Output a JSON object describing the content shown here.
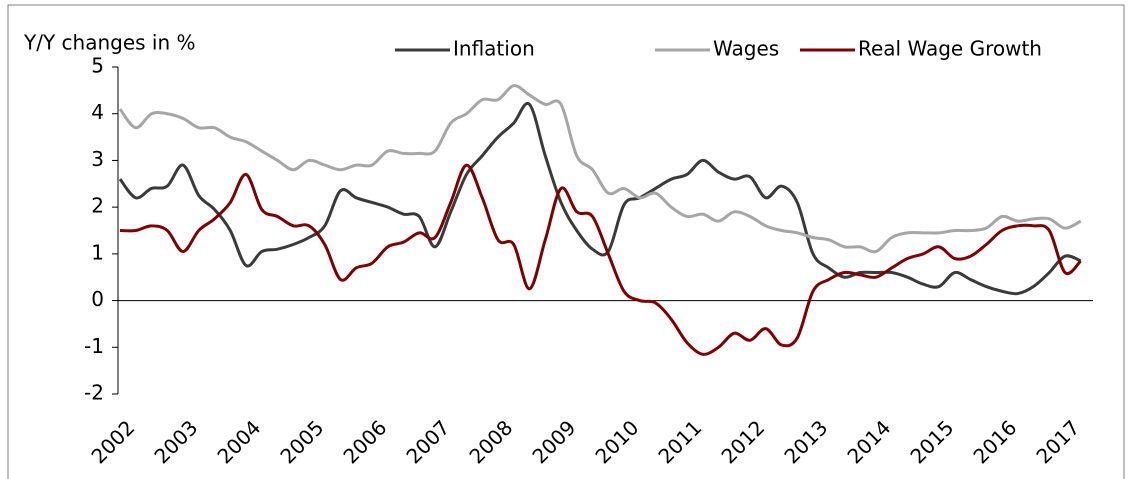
{
  "chart_data": {
    "type": "line",
    "ylabel": "Y/Y changes in %",
    "x": [
      2002,
      2002.25,
      2002.5,
      2002.75,
      2003,
      2003.25,
      2003.5,
      2003.75,
      2004,
      2004.25,
      2004.5,
      2004.75,
      2005,
      2005.25,
      2005.5,
      2005.75,
      2006,
      2006.25,
      2006.5,
      2006.75,
      2007,
      2007.25,
      2007.5,
      2007.75,
      2008,
      2008.25,
      2008.5,
      2008.75,
      2009,
      2009.25,
      2009.5,
      2009.75,
      2010,
      2010.25,
      2010.5,
      2010.75,
      2011,
      2011.25,
      2011.5,
      2011.75,
      2012,
      2012.25,
      2012.5,
      2012.75,
      2013,
      2013.25,
      2013.5,
      2013.75,
      2014,
      2014.25,
      2014.5,
      2014.75,
      2015,
      2015.25,
      2015.5,
      2015.75,
      2016,
      2016.25,
      2016.5,
      2016.75,
      2017,
      2017.25
    ],
    "series": [
      {
        "name": "Inflation",
        "color": "#3a3a3a",
        "values": [
          2.6,
          2.2,
          2.4,
          2.45,
          2.9,
          2.25,
          1.95,
          1.5,
          0.75,
          1.05,
          1.1,
          1.2,
          1.35,
          1.6,
          2.35,
          2.2,
          2.1,
          2.0,
          1.85,
          1.8,
          1.15,
          1.9,
          2.7,
          3.1,
          3.5,
          3.8,
          4.2,
          3.1,
          2.1,
          1.5,
          1.1,
          1.05,
          2.05,
          2.2,
          2.4,
          2.6,
          2.7,
          3.0,
          2.75,
          2.6,
          2.65,
          2.2,
          2.45,
          2.1,
          1.0,
          0.7,
          0.5,
          0.6,
          0.6,
          0.6,
          0.5,
          0.35,
          0.3,
          0.6,
          0.45,
          0.3,
          0.2,
          0.15,
          0.3,
          0.6,
          0.95,
          0.85
        ]
      },
      {
        "name": "Wages",
        "color": "#a6a6a6",
        "values": [
          4.1,
          3.7,
          4.0,
          4.0,
          3.9,
          3.7,
          3.7,
          3.5,
          3.4,
          3.2,
          3.0,
          2.8,
          3.0,
          2.9,
          2.8,
          2.9,
          2.9,
          3.2,
          3.15,
          3.15,
          3.2,
          3.8,
          4.0,
          4.3,
          4.3,
          4.6,
          4.4,
          4.2,
          4.2,
          3.1,
          2.8,
          2.3,
          2.4,
          2.2,
          2.3,
          2.0,
          1.8,
          1.85,
          1.7,
          1.9,
          1.8,
          1.6,
          1.5,
          1.45,
          1.35,
          1.3,
          1.15,
          1.15,
          1.05,
          1.35,
          1.45,
          1.45,
          1.45,
          1.5,
          1.5,
          1.55,
          1.8,
          1.7,
          1.75,
          1.75,
          1.55,
          1.7
        ]
      },
      {
        "name": "Real Wage Growth",
        "color": "#7f0000",
        "values": [
          1.5,
          1.5,
          1.6,
          1.5,
          1.05,
          1.5,
          1.75,
          2.1,
          2.7,
          1.95,
          1.8,
          1.6,
          1.6,
          1.2,
          0.45,
          0.7,
          0.8,
          1.15,
          1.25,
          1.45,
          1.35,
          2.1,
          2.9,
          2.2,
          1.3,
          1.2,
          0.25,
          1.3,
          2.4,
          1.9,
          1.8,
          1.0,
          0.2,
          0.0,
          -0.05,
          -0.4,
          -0.9,
          -1.15,
          -1.0,
          -0.7,
          -0.85,
          -0.6,
          -0.95,
          -0.8,
          0.2,
          0.45,
          0.6,
          0.55,
          0.5,
          0.7,
          0.9,
          1.0,
          1.15,
          0.9,
          0.95,
          1.2,
          1.5,
          1.6,
          1.6,
          1.5,
          0.6,
          0.85
        ]
      }
    ],
    "xlim": [
      2002,
      2017.5
    ],
    "xticks": [
      2002,
      2003,
      2004,
      2005,
      2006,
      2007,
      2008,
      2009,
      2010,
      2011,
      2012,
      2013,
      2014,
      2015,
      2016,
      2017
    ],
    "ylim": [
      -2,
      5
    ],
    "yticks": [
      -2,
      -1,
      0,
      1,
      2,
      3,
      4,
      5
    ],
    "legend": "top"
  }
}
